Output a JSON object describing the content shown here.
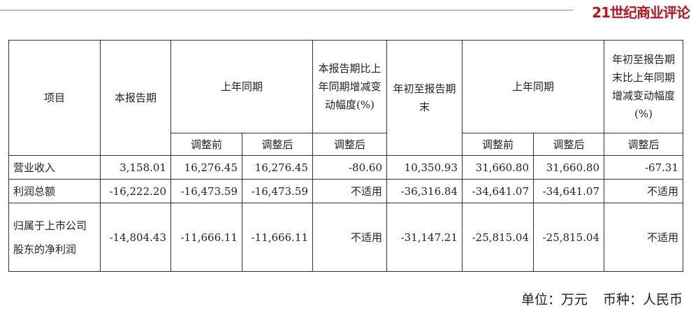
{
  "brand": {
    "logo_text": "21世纪商业评论",
    "color": "#c0141c"
  },
  "table": {
    "headers": {
      "item": "项目",
      "current_period": "本报告期",
      "prior_period_group": "上年同期",
      "change_current": "本报告期比上年同期增减变动幅度(%)",
      "ytd": "年初至报告期末",
      "prior_ytd_group": "上年同期",
      "change_ytd": "年初至报告期末比上年同期增减变动幅度(%)",
      "sub": [
        "调整前",
        "调整后",
        "调整后",
        "调整前",
        "调整后",
        "调整后"
      ]
    },
    "rows": [
      {
        "label": "营业收入",
        "values": [
          "3,158.01",
          "16,276.45",
          "16,276.45",
          "-80.60",
          "10,350.93",
          "31,660.80",
          "31,660.80",
          "-67.31"
        ]
      },
      {
        "label": "利润总额",
        "values": [
          "-16,222.20",
          "-16,473.59",
          "-16,473.59",
          "不适用",
          "-36,316.84",
          "-34,641.07",
          "-34,641.07",
          "不适用"
        ]
      },
      {
        "label": "归属于上市公司股东的净利润",
        "values": [
          "-14,804.43",
          "-11,666.11",
          "-11,666.11",
          "不适用",
          "-31,147.21",
          "-25,815.04",
          "-25,815.04",
          "不适用"
        ]
      }
    ]
  },
  "footer": {
    "unit": "单位：万元",
    "currency": "币种：人民币"
  }
}
